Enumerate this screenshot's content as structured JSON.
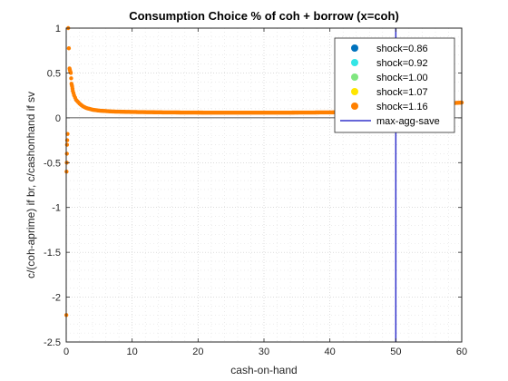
{
  "chart_data": {
    "type": "scatter",
    "title": "Consumption Choice % of coh + borrow (x=coh)",
    "xlabel": "cash-on-hand",
    "ylabel": "c/(coh-aprime) if br, c/cashonhand if sv",
    "xlim": [
      0,
      60
    ],
    "ylim": [
      -2.5,
      1
    ],
    "xticks": [
      "0",
      "10",
      "20",
      "30",
      "40",
      "50",
      "60"
    ],
    "yticks": [
      "-2.5",
      "-2",
      "-1.5",
      "-1",
      "-0.5",
      "0",
      "0.5",
      "1"
    ],
    "grid": "on (minor dotted)",
    "legend_location": "top-right",
    "series": [
      {
        "name": "shock=0.86",
        "color": "#0072bd",
        "marker": "dot",
        "x": [],
        "y": []
      },
      {
        "name": "shock=0.92",
        "color": "#33e6e6",
        "marker": "dot",
        "x": [],
        "y": []
      },
      {
        "name": "shock=1.00",
        "color": "#80e680",
        "marker": "dot",
        "x": [],
        "y": []
      },
      {
        "name": "shock=1.07",
        "color": "#ffe600",
        "marker": "dot",
        "x": [],
        "y": []
      },
      {
        "name": "shock=1.16",
        "color": "#ff8000",
        "marker": "dot",
        "x": [
          0.02,
          0.05,
          0.08,
          0.1,
          0.12,
          0.15,
          0.2,
          0.3,
          0.5,
          0.6,
          0.7,
          0.8,
          0.9,
          1.0,
          1.2,
          1.5,
          2,
          2.5,
          3,
          4,
          5,
          7,
          10,
          15,
          20,
          25,
          30,
          35,
          40,
          45,
          50,
          52,
          54,
          56,
          58,
          60
        ],
        "y": [
          -2.2,
          -0.6,
          -0.5,
          -0.4,
          -0.3,
          -0.25,
          -0.18,
          1.0,
          0.55,
          0.52,
          0.5,
          0.38,
          0.35,
          0.3,
          0.25,
          0.2,
          0.16,
          0.13,
          0.11,
          0.09,
          0.08,
          0.07,
          0.065,
          0.06,
          0.058,
          0.057,
          0.057,
          0.058,
          0.06,
          0.065,
          0.08,
          0.1,
          0.12,
          0.14,
          0.16,
          0.17
        ]
      }
    ],
    "vline": {
      "name": "max-agg-save",
      "x": 50,
      "color": "#3333cc"
    },
    "hline": {
      "y": 0,
      "color": "#262626"
    }
  }
}
